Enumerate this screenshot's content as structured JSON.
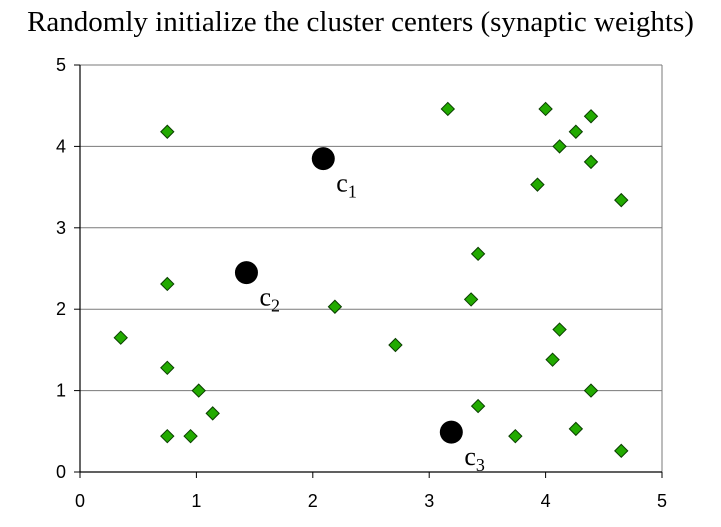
{
  "chart_data": {
    "type": "scatter",
    "title": "Randomly initialize the cluster centers (synaptic weights)",
    "xlabel": "",
    "ylabel": "",
    "xlim": [
      0,
      5
    ],
    "ylim": [
      0,
      5
    ],
    "xticks": [
      "0",
      "1",
      "2",
      "3",
      "4",
      "5"
    ],
    "yticks": [
      "0",
      "1",
      "2",
      "3",
      "4",
      "5"
    ],
    "grid": "horizontal",
    "legend": "none",
    "series": [
      {
        "marker": "diamond",
        "color": "#22aa00",
        "edge_color": "#0a3d00",
        "points": [
          [
            0.75,
            4.18
          ],
          [
            0.75,
            2.31
          ],
          [
            0.35,
            1.65
          ],
          [
            0.75,
            1.28
          ],
          [
            1.02,
            1.0
          ],
          [
            1.14,
            0.72
          ],
          [
            0.75,
            0.44
          ],
          [
            0.95,
            0.44
          ],
          [
            2.19,
            2.03
          ],
          [
            2.71,
            1.56
          ],
          [
            3.16,
            4.46
          ],
          [
            3.42,
            2.68
          ],
          [
            3.36,
            2.12
          ],
          [
            3.42,
            0.81
          ],
          [
            3.74,
            0.44
          ],
          [
            4.0,
            4.46
          ],
          [
            4.26,
            4.18
          ],
          [
            4.39,
            4.37
          ],
          [
            4.12,
            4.0
          ],
          [
            4.39,
            3.81
          ],
          [
            3.93,
            3.53
          ],
          [
            4.65,
            3.34
          ],
          [
            4.12,
            1.75
          ],
          [
            4.06,
            1.38
          ],
          [
            4.39,
            1.0
          ],
          [
            4.26,
            0.53
          ],
          [
            4.65,
            0.26
          ]
        ]
      },
      {
        "marker": "circle",
        "color": "#000000",
        "points": [
          [
            2.09,
            3.85
          ],
          [
            1.43,
            2.45
          ],
          [
            3.19,
            0.49
          ]
        ],
        "labels": [
          {
            "base": "c",
            "sub": "1"
          },
          {
            "base": "c",
            "sub": "2"
          },
          {
            "base": "c",
            "sub": "3"
          }
        ]
      }
    ]
  }
}
